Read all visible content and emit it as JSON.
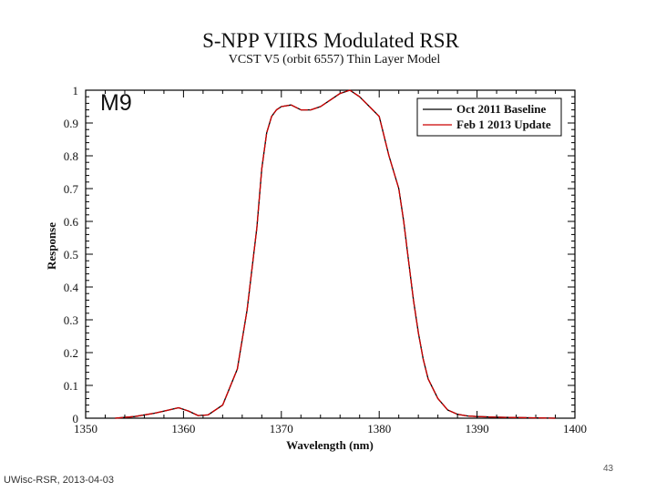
{
  "slide": {
    "footer_left": "UWisc-RSR, 2013-04-03",
    "page_number": "43",
    "band_label": "M9"
  },
  "colors": {
    "baseline": "#000000",
    "update": "#cc0000",
    "axis": "#000000"
  },
  "chart_data": {
    "type": "line",
    "title": "S-NPP VIIRS Modulated RSR",
    "subtitle": "VCST V5 (orbit 6557) Thin Layer Model",
    "xlabel": "Wavelength (nm)",
    "ylabel": "Response",
    "xlim": [
      1350,
      1400
    ],
    "ylim": [
      0,
      1
    ],
    "xticks": [
      1350,
      1360,
      1370,
      1380,
      1390,
      1400
    ],
    "yticks": [
      0,
      0.1,
      0.2,
      0.3,
      0.4,
      0.5,
      0.6,
      0.7,
      0.8,
      0.9,
      1
    ],
    "grid": false,
    "legend_position": "top-right",
    "series": [
      {
        "name": "Oct 2011 Baseline",
        "color": "#000000",
        "x": [
          1353,
          1355,
          1357,
          1358.5,
          1359.5,
          1360.5,
          1361.5,
          1362.5,
          1364,
          1365.5,
          1366.5,
          1367.5,
          1368,
          1368.5,
          1369,
          1369.5,
          1370,
          1371,
          1372,
          1373,
          1374,
          1375,
          1376,
          1377,
          1378,
          1379,
          1380,
          1381,
          1382,
          1382.5,
          1383,
          1383.5,
          1384,
          1384.5,
          1385,
          1386,
          1387,
          1388,
          1389,
          1390,
          1392,
          1394,
          1396,
          1398
        ],
        "y": [
          0.0,
          0.005,
          0.015,
          0.025,
          0.032,
          0.022,
          0.008,
          0.01,
          0.04,
          0.15,
          0.33,
          0.58,
          0.76,
          0.87,
          0.92,
          0.94,
          0.95,
          0.955,
          0.94,
          0.94,
          0.95,
          0.97,
          0.99,
          1.0,
          0.98,
          0.95,
          0.92,
          0.8,
          0.7,
          0.6,
          0.48,
          0.36,
          0.26,
          0.18,
          0.12,
          0.06,
          0.025,
          0.012,
          0.007,
          0.005,
          0.003,
          0.002,
          0.001,
          0.0
        ]
      },
      {
        "name": "Feb 1 2013 Update",
        "color": "#cc0000",
        "x": [
          1353,
          1355,
          1357,
          1358.5,
          1359.5,
          1360.5,
          1361.5,
          1362.5,
          1364,
          1365.5,
          1366.5,
          1367.5,
          1368,
          1368.5,
          1369,
          1369.5,
          1370,
          1371,
          1372,
          1373,
          1374,
          1375,
          1376,
          1377,
          1378,
          1379,
          1380,
          1381,
          1382,
          1382.5,
          1383,
          1383.5,
          1384,
          1384.5,
          1385,
          1386,
          1387,
          1388,
          1389,
          1390,
          1392,
          1394,
          1396,
          1398
        ],
        "y": [
          0.0,
          0.005,
          0.015,
          0.025,
          0.032,
          0.022,
          0.008,
          0.01,
          0.04,
          0.15,
          0.33,
          0.58,
          0.76,
          0.87,
          0.92,
          0.94,
          0.95,
          0.955,
          0.94,
          0.94,
          0.95,
          0.97,
          0.99,
          1.0,
          0.98,
          0.95,
          0.92,
          0.8,
          0.7,
          0.6,
          0.48,
          0.36,
          0.26,
          0.18,
          0.12,
          0.06,
          0.025,
          0.012,
          0.007,
          0.005,
          0.003,
          0.002,
          0.001,
          0.0
        ]
      }
    ]
  }
}
